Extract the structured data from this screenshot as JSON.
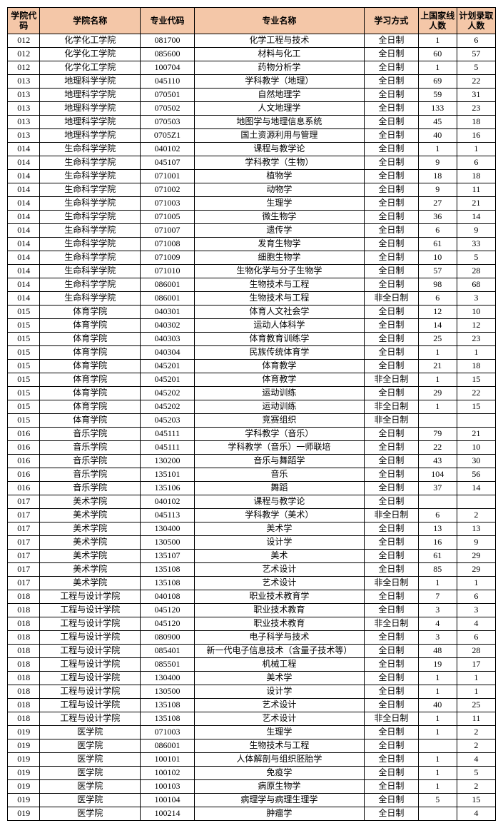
{
  "headers": {
    "col1": "学院代码",
    "col2": "学院名称",
    "col3": "专业代码",
    "col4": "专业名称",
    "col5": "学习方式",
    "col6": "上国家线人数",
    "col7": "计划录取人数"
  },
  "rows": [
    [
      "012",
      "化学化工学院",
      "081700",
      "化学工程与技术",
      "全日制",
      "1",
      "6"
    ],
    [
      "012",
      "化学化工学院",
      "085600",
      "材料与化工",
      "全日制",
      "60",
      "57"
    ],
    [
      "012",
      "化学化工学院",
      "100704",
      "药物分析学",
      "全日制",
      "1",
      "5"
    ],
    [
      "013",
      "地理科学学院",
      "045110",
      "学科教学（地理）",
      "全日制",
      "69",
      "22"
    ],
    [
      "013",
      "地理科学学院",
      "070501",
      "自然地理学",
      "全日制",
      "59",
      "31"
    ],
    [
      "013",
      "地理科学学院",
      "070502",
      "人文地理学",
      "全日制",
      "133",
      "23"
    ],
    [
      "013",
      "地理科学学院",
      "070503",
      "地图学与地理信息系统",
      "全日制",
      "45",
      "18"
    ],
    [
      "013",
      "地理科学学院",
      "0705Z1",
      "国土资源利用与管理",
      "全日制",
      "40",
      "16"
    ],
    [
      "014",
      "生命科学学院",
      "040102",
      "课程与教学论",
      "全日制",
      "1",
      "1"
    ],
    [
      "014",
      "生命科学学院",
      "045107",
      "学科教学（生物）",
      "全日制",
      "9",
      "6"
    ],
    [
      "014",
      "生命科学学院",
      "071001",
      "植物学",
      "全日制",
      "18",
      "18"
    ],
    [
      "014",
      "生命科学学院",
      "071002",
      "动物学",
      "全日制",
      "9",
      "11"
    ],
    [
      "014",
      "生命科学学院",
      "071003",
      "生理学",
      "全日制",
      "27",
      "21"
    ],
    [
      "014",
      "生命科学学院",
      "071005",
      "微生物学",
      "全日制",
      "36",
      "14"
    ],
    [
      "014",
      "生命科学学院",
      "071007",
      "遗传学",
      "全日制",
      "6",
      "9"
    ],
    [
      "014",
      "生命科学学院",
      "071008",
      "发育生物学",
      "全日制",
      "61",
      "33"
    ],
    [
      "014",
      "生命科学学院",
      "071009",
      "细胞生物学",
      "全日制",
      "10",
      "5"
    ],
    [
      "014",
      "生命科学学院",
      "071010",
      "生物化学与分子生物学",
      "全日制",
      "57",
      "28"
    ],
    [
      "014",
      "生命科学学院",
      "086001",
      "生物技术与工程",
      "全日制",
      "98",
      "68"
    ],
    [
      "014",
      "生命科学学院",
      "086001",
      "生物技术与工程",
      "非全日制",
      "6",
      "3"
    ],
    [
      "015",
      "体育学院",
      "040301",
      "体育人文社会学",
      "全日制",
      "12",
      "10"
    ],
    [
      "015",
      "体育学院",
      "040302",
      "运动人体科学",
      "全日制",
      "14",
      "12"
    ],
    [
      "015",
      "体育学院",
      "040303",
      "体育教育训练学",
      "全日制",
      "25",
      "23"
    ],
    [
      "015",
      "体育学院",
      "040304",
      "民族传统体育学",
      "全日制",
      "1",
      "1"
    ],
    [
      "015",
      "体育学院",
      "045201",
      "体育教学",
      "全日制",
      "21",
      "18"
    ],
    [
      "015",
      "体育学院",
      "045201",
      "体育教学",
      "非全日制",
      "1",
      "15"
    ],
    [
      "015",
      "体育学院",
      "045202",
      "运动训练",
      "全日制",
      "29",
      "22"
    ],
    [
      "015",
      "体育学院",
      "045202",
      "运动训练",
      "非全日制",
      "1",
      "15"
    ],
    [
      "015",
      "体育学院",
      "045203",
      "竞赛组织",
      "非全日制",
      "",
      ""
    ],
    [
      "016",
      "音乐学院",
      "045111",
      "学科教学（音乐）",
      "全日制",
      "79",
      "21"
    ],
    [
      "016",
      "音乐学院",
      "045111",
      "学科教学（音乐）一师联培",
      "全日制",
      "22",
      "10"
    ],
    [
      "016",
      "音乐学院",
      "130200",
      "音乐与舞蹈学",
      "全日制",
      "43",
      "30"
    ],
    [
      "016",
      "音乐学院",
      "135101",
      "音乐",
      "全日制",
      "104",
      "56"
    ],
    [
      "016",
      "音乐学院",
      "135106",
      "舞蹈",
      "全日制",
      "37",
      "14"
    ],
    [
      "017",
      "美术学院",
      "040102",
      "课程与教学论",
      "全日制",
      "",
      ""
    ],
    [
      "017",
      "美术学院",
      "045113",
      "学科教学（美术）",
      "非全日制",
      "6",
      "2"
    ],
    [
      "017",
      "美术学院",
      "130400",
      "美术学",
      "全日制",
      "13",
      "13"
    ],
    [
      "017",
      "美术学院",
      "130500",
      "设计学",
      "全日制",
      "16",
      "9"
    ],
    [
      "017",
      "美术学院",
      "135107",
      "美术",
      "全日制",
      "61",
      "29"
    ],
    [
      "017",
      "美术学院",
      "135108",
      "艺术设计",
      "全日制",
      "85",
      "29"
    ],
    [
      "017",
      "美术学院",
      "135108",
      "艺术设计",
      "非全日制",
      "1",
      "1"
    ],
    [
      "018",
      "工程与设计学院",
      "040108",
      "职业技术教育学",
      "全日制",
      "7",
      "6"
    ],
    [
      "018",
      "工程与设计学院",
      "045120",
      "职业技术教育",
      "全日制",
      "3",
      "3"
    ],
    [
      "018",
      "工程与设计学院",
      "045120",
      "职业技术教育",
      "非全日制",
      "4",
      "4"
    ],
    [
      "018",
      "工程与设计学院",
      "080900",
      "电子科学与技术",
      "全日制",
      "3",
      "6"
    ],
    [
      "018",
      "工程与设计学院",
      "085401",
      "新一代电子信息技术（含量子技术等）",
      "全日制",
      "48",
      "28"
    ],
    [
      "018",
      "工程与设计学院",
      "085501",
      "机械工程",
      "全日制",
      "19",
      "17"
    ],
    [
      "018",
      "工程与设计学院",
      "130400",
      "美术学",
      "全日制",
      "1",
      "1"
    ],
    [
      "018",
      "工程与设计学院",
      "130500",
      "设计学",
      "全日制",
      "1",
      "1"
    ],
    [
      "018",
      "工程与设计学院",
      "135108",
      "艺术设计",
      "全日制",
      "40",
      "25"
    ],
    [
      "018",
      "工程与设计学院",
      "135108",
      "艺术设计",
      "非全日制",
      "1",
      "11"
    ],
    [
      "019",
      "医学院",
      "071003",
      "生理学",
      "全日制",
      "1",
      "2"
    ],
    [
      "019",
      "医学院",
      "086001",
      "生物技术与工程",
      "全日制",
      "",
      "2"
    ],
    [
      "019",
      "医学院",
      "100101",
      "人体解剖与组织胚胎学",
      "全日制",
      "1",
      "4"
    ],
    [
      "019",
      "医学院",
      "100102",
      "免疫学",
      "全日制",
      "1",
      "5"
    ],
    [
      "019",
      "医学院",
      "100103",
      "病原生物学",
      "全日制",
      "1",
      "2"
    ],
    [
      "019",
      "医学院",
      "100104",
      "病理学与病理生理学",
      "全日制",
      "5",
      "15"
    ],
    [
      "019",
      "医学院",
      "100214",
      "肿瘤学",
      "全日制",
      "",
      "4"
    ]
  ]
}
